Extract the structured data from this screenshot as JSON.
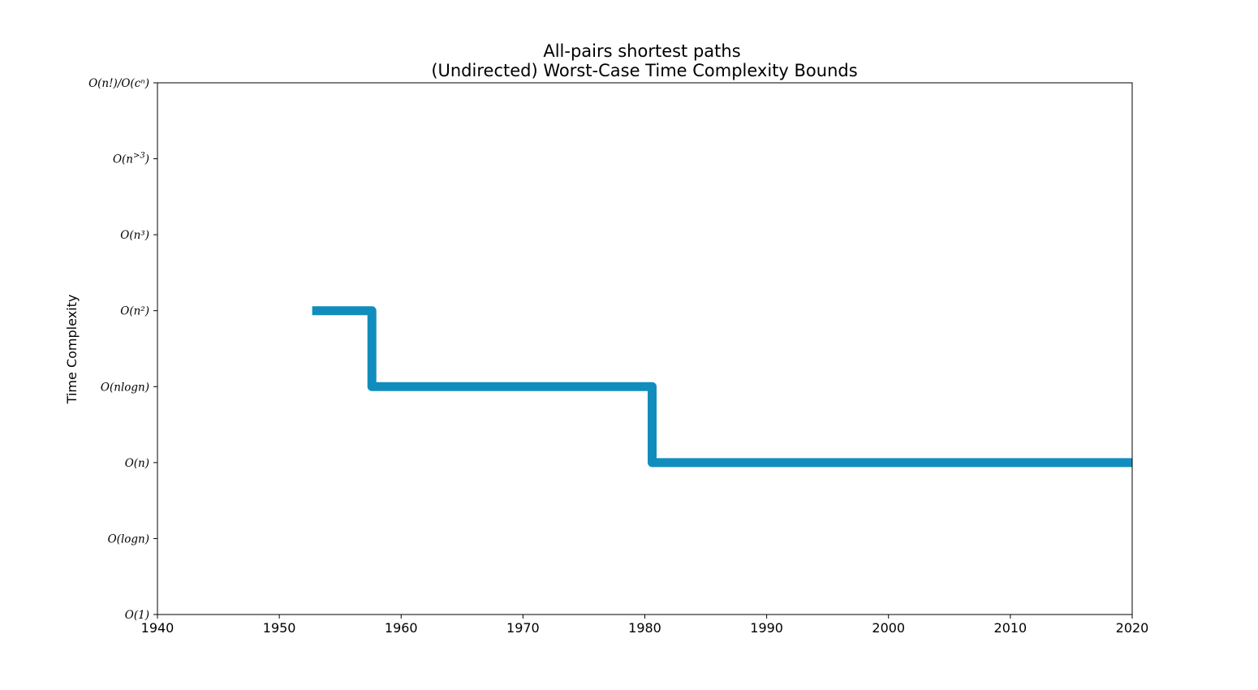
{
  "chart_data": {
    "type": "line",
    "drawstyle": "steps-post",
    "title": "All-pairs shortest paths",
    "subtitle": "(Undirected) Worst-Case Time Complexity Bounds",
    "xlabel": "",
    "ylabel": "Time Complexity",
    "xlim": [
      1940,
      2020
    ],
    "ylim": [
      0,
      7
    ],
    "x_ticks": [
      1940,
      1950,
      1960,
      1970,
      1980,
      1990,
      2000,
      2010,
      2020
    ],
    "y_ticks": [
      {
        "value": 0,
        "label": "O(1)"
      },
      {
        "value": 1,
        "label": "O(logn)"
      },
      {
        "value": 2,
        "label": "O(n)"
      },
      {
        "value": 3,
        "label": "O(nlogn)"
      },
      {
        "value": 4,
        "label": "O(n²)"
      },
      {
        "value": 5,
        "label": "O(n³)"
      },
      {
        "value": 6,
        "label": "O(n^>3)"
      },
      {
        "value": 7,
        "label": "O(n!)/O(cⁿ)"
      }
    ],
    "grid": false,
    "color": "#118dbd",
    "series": [
      {
        "points": [
          {
            "x": 1952.7,
            "y": 4
          },
          {
            "x": 1957.6,
            "y": 3
          },
          {
            "x": 1980.6,
            "y": 2
          },
          {
            "x": 2020,
            "y": 2
          }
        ]
      }
    ]
  }
}
